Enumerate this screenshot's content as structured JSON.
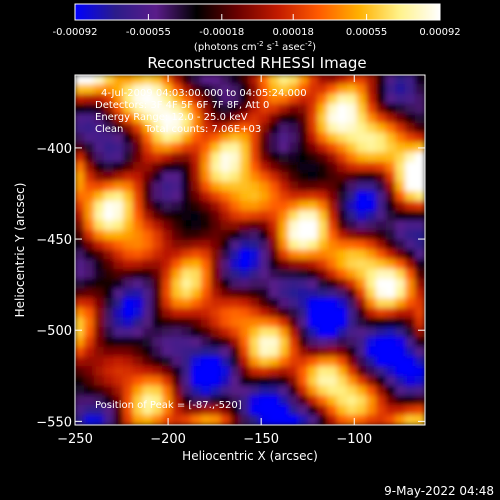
{
  "chart_data": {
    "type": "heatmap",
    "title": "Reconstructed RHESSI Image",
    "xlabel": "Heliocentric X (arcsec)",
    "ylabel": "Heliocentric Y (arcsec)",
    "xlim": [
      -250,
      -62
    ],
    "ylim": [
      -552,
      -360
    ],
    "x_ticks": [
      -250,
      -200,
      -150,
      -100
    ],
    "y_ticks": [
      -400,
      -450,
      -500,
      -550
    ],
    "colorbar": {
      "ticks": [
        "-0.00092",
        "-0.00055",
        "-0.00018",
        "0.00018",
        "0.00055",
        "0.00092"
      ],
      "unit_main": "(photons cm",
      "unit_sup1": "-2",
      "unit_mid": " s",
      "unit_sup2": "-1",
      "unit_mid2": " asec",
      "unit_sup3": "-2",
      "unit_end": ")",
      "range": [
        -0.00092,
        0.00092
      ],
      "colors": [
        "#0000ff",
        "#2b1c8a",
        "#5a1c8a",
        "#000000",
        "#6a0000",
        "#c21a00",
        "#ff5a00",
        "#ffb000",
        "#fff28a",
        "#ffffff"
      ]
    },
    "annotations": {
      "time_range": "4-Jul-2009 04:03:00.000 to 04:05:24.000",
      "detectors": "Detectors: 3F 4F 5F 6F 7F 8F, Att 0",
      "energy": "Energy Range: 12.0 - 25.0 keV",
      "clean": "Clean",
      "total_counts": "Total counts: 7.06E+03",
      "peak": "Position of Peak = [-87.,-520]"
    }
  },
  "footer": {
    "date": "9-May-2022 04:48"
  }
}
